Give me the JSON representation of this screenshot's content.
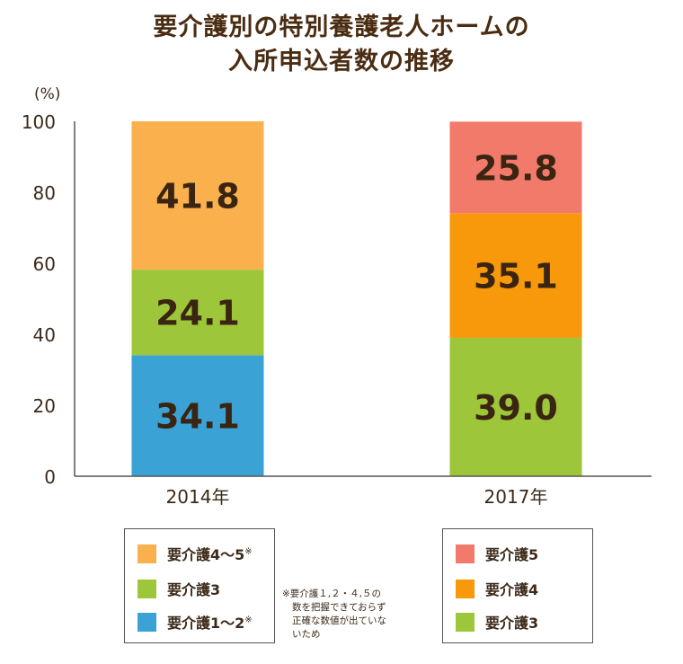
{
  "title_line1": "要介護別の特別養護老人ホームの",
  "title_line2": "入所申込者数の推移",
  "chart_data": {
    "type": "bar",
    "stacked": true,
    "ylabel": "(%)",
    "ylim": [
      0,
      100
    ],
    "yticks": [
      "0",
      "20",
      "40",
      "60",
      "80",
      "100"
    ],
    "categories": [
      "2014年",
      "2017年"
    ],
    "bars": [
      {
        "category": "2014年",
        "segments": [
          {
            "name": "要介護1〜2",
            "value": 34.1,
            "label": "34.1",
            "color": "#3ba2d6"
          },
          {
            "name": "要介護3",
            "value": 24.1,
            "label": "24.1",
            "color": "#9dc63a"
          },
          {
            "name": "要介護4〜5",
            "value": 41.8,
            "label": "41.8",
            "color": "#fbb04e"
          }
        ]
      },
      {
        "category": "2017年",
        "segments": [
          {
            "name": "要介護3",
            "value": 39.0,
            "label": "39.0",
            "color": "#9dc63a"
          },
          {
            "name": "要介護4",
            "value": 35.1,
            "label": "35.1",
            "color": "#f7990a"
          },
          {
            "name": "要介護5",
            "value": 25.8,
            "label": "25.8",
            "color": "#f27a6a"
          }
        ]
      }
    ]
  },
  "legend_2014": [
    {
      "label": "要介護4～5",
      "mark": "※",
      "color": "#fbb04e"
    },
    {
      "label": "要介護3",
      "mark": "",
      "color": "#9dc63a"
    },
    {
      "label": "要介護1～2",
      "mark": "※",
      "color": "#3ba2d6"
    }
  ],
  "legend_2017": [
    {
      "label": "要介護5",
      "color": "#f27a6a"
    },
    {
      "label": "要介護4",
      "color": "#f7990a"
    },
    {
      "label": "要介護3",
      "color": "#9dc63a"
    }
  ],
  "note": {
    "line1": "※要介護１,２・４,５の",
    "line2": "数を把握できておらず",
    "line3": "正確な数値が出ていな",
    "line4": "いため"
  }
}
